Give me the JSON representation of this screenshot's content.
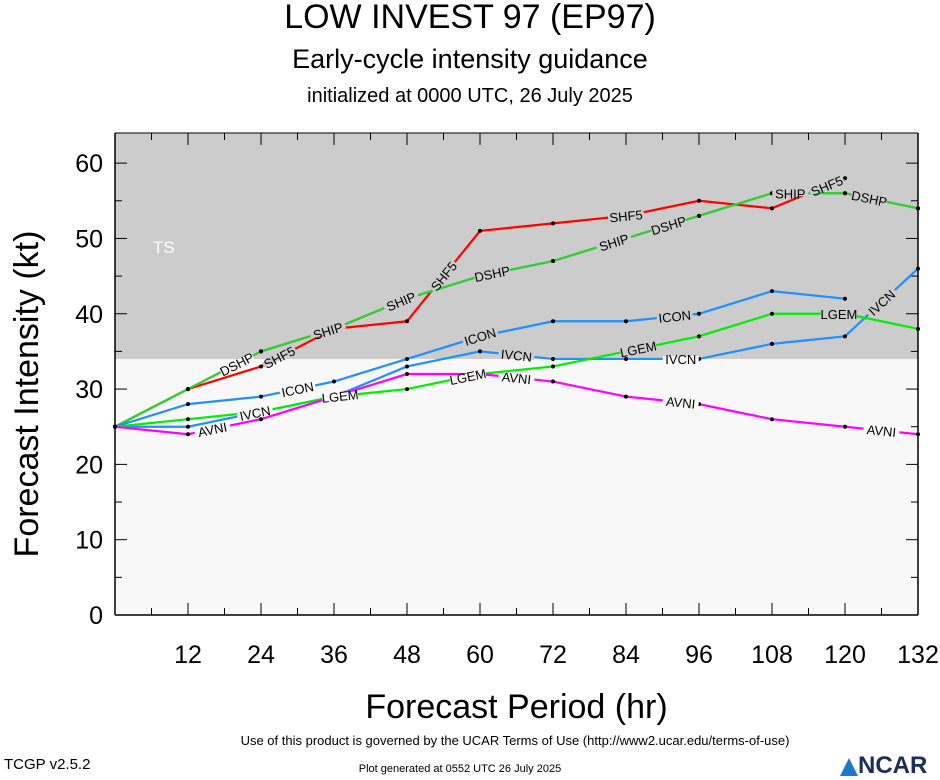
{
  "header": {
    "title": "LOW INVEST 97 (EP97)",
    "subtitle": "Early-cycle intensity guidance",
    "initialized": "initialized at 0000 UTC, 26 July 2025"
  },
  "footer": {
    "terms": "Use of this product is governed by the UCAR Terms of Use (http://www2.ucar.edu/terms-of-use)",
    "generated": "Plot generated at 0552 UTC   26 July 2025",
    "version": "TCGP v2.5.2",
    "logo": "NCAR"
  },
  "chart_data": {
    "type": "line",
    "xlabel": "Forecast Period (hr)",
    "ylabel": "Forecast Intensity (kt)",
    "xlim": [
      0,
      132
    ],
    "ylim": [
      0,
      64
    ],
    "xticks": [
      12,
      24,
      36,
      48,
      60,
      72,
      84,
      96,
      108,
      120,
      132
    ],
    "yticks": [
      0,
      10,
      20,
      30,
      40,
      50,
      60
    ],
    "bands": [
      {
        "label": "TS",
        "from": 34,
        "to": 64,
        "color": "#cccccc"
      }
    ],
    "background_color": "#f8f8f8",
    "x": [
      0,
      12,
      24,
      36,
      48,
      60,
      72,
      84,
      96,
      108,
      120,
      132
    ],
    "series": [
      {
        "name": "SHF5",
        "color": "#ff0000",
        "values": [
          25,
          30,
          33,
          38,
          39,
          51,
          52,
          53,
          55,
          54,
          58,
          null
        ],
        "label_at": [
          27,
          54,
          84,
          117
        ]
      },
      {
        "name": "DSHP",
        "color": "#33cc33",
        "values": [
          25,
          30,
          35,
          38,
          42,
          45,
          47,
          50,
          53,
          56,
          56,
          54
        ],
        "label_at": [
          24,
          58,
          87,
          124
        ]
      },
      {
        "name": "SHIP",
        "color": "#33cc33",
        "values": [
          25,
          30,
          35,
          38,
          42,
          45,
          47,
          50,
          53,
          56,
          56,
          54
        ],
        "label_at": [
          25,
          57,
          86,
          121
        ]
      },
      {
        "name": "ICON",
        "color": "#1e90ff",
        "values": [
          25,
          28,
          29,
          31,
          34,
          37,
          39,
          39,
          40,
          43,
          42,
          null
        ],
        "label_at": [
          30,
          60,
          92
        ]
      },
      {
        "name": "IVCN",
        "color": "#1e90ff",
        "values": [
          25,
          25,
          27,
          29,
          33,
          35,
          34,
          34,
          34,
          36,
          37,
          46
        ],
        "label_at": [
          27,
          60,
          93,
          126
        ]
      },
      {
        "name": "LGEM",
        "color": "#00ee00",
        "values": [
          25,
          26,
          27,
          29,
          30,
          32,
          33,
          35,
          37,
          40,
          40,
          38
        ],
        "label_at": [
          27,
          64,
          92,
          129
        ]
      },
      {
        "name": "AVNI",
        "color": "#ff00ff",
        "values": [
          25,
          24,
          26,
          29,
          32,
          32,
          31,
          29,
          28,
          26,
          25,
          24
        ],
        "label_at": [
          26,
          62,
          93,
          126
        ]
      }
    ]
  }
}
